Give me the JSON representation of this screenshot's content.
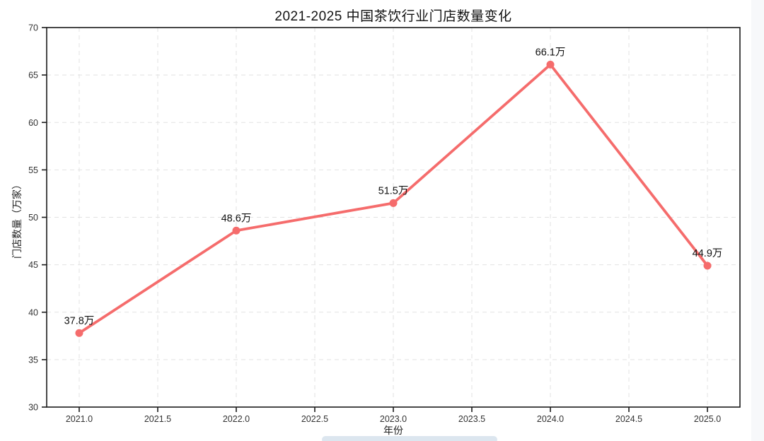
{
  "page": {
    "background": "#ffffff",
    "right_strip_color": "#f7f8fa",
    "scrollbar_color": "#dce6ef"
  },
  "chart_data": {
    "type": "line",
    "title": "2021-2025 中国茶饮行业门店数量变化",
    "xlabel": "年份",
    "ylabel": "门店数量（万家）",
    "x": [
      2021,
      2022,
      2023,
      2024,
      2025
    ],
    "series": [
      {
        "name": "门店数量",
        "values": [
          37.8,
          48.6,
          51.5,
          66.1,
          44.9
        ]
      }
    ],
    "point_labels": [
      "37.8万",
      "48.6万",
      "51.5万",
      "66.1万",
      "44.9万"
    ],
    "xticks": {
      "values": [
        2021.0,
        2021.5,
        2022.0,
        2022.5,
        2023.0,
        2023.5,
        2024.0,
        2024.5,
        2025.0
      ],
      "labels": [
        "2021.0",
        "2021.5",
        "2022.0",
        "2022.5",
        "2023.0",
        "2023.5",
        "2024.0",
        "2024.5",
        "2025.0"
      ]
    },
    "yticks": {
      "values": [
        30,
        35,
        40,
        45,
        50,
        55,
        60,
        65,
        70
      ],
      "labels": [
        "30",
        "35",
        "40",
        "45",
        "50",
        "55",
        "60",
        "65",
        "70"
      ]
    },
    "xlim": [
      2020.793,
      2025.207
    ],
    "ylim": [
      30,
      70
    ],
    "grid": true,
    "grid_style": "dashed",
    "legend": false,
    "line_color": "#F56C6C",
    "marker": "circle",
    "grid_color": "#e2e2e2",
    "axis_color": "#1a1a1a",
    "tick_label_color": "#333333",
    "text_color": "#111111"
  }
}
